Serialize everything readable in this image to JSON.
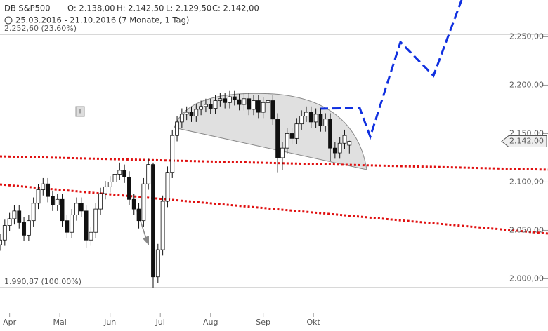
{
  "chart_data": {
    "type": "candlestick",
    "title": "DB S&P500",
    "ohlc_header": [
      "O: 2.138,00",
      "H: 2.142,50",
      "L: 2.129,50",
      "C: 2.142,00"
    ],
    "subtitle": "25.03.2016 - 21.10.2016 (7 Monate, 1 Tag)",
    "x": [
      0,
      2,
      4,
      6,
      8,
      10,
      12,
      14,
      16,
      18,
      20,
      22,
      24,
      26,
      28,
      30,
      32,
      34,
      36,
      38,
      40,
      42,
      44,
      46,
      48,
      50,
      52,
      54,
      56,
      58,
      60,
      62,
      64,
      66,
      68,
      70,
      72,
      74,
      76,
      78,
      80,
      82,
      84,
      86,
      88,
      90,
      92,
      94,
      96,
      98,
      100,
      102,
      104,
      106,
      108,
      110,
      112,
      114,
      116,
      118,
      120,
      122,
      124,
      126,
      128,
      130,
      132,
      134,
      136,
      138,
      140,
      142,
      144,
      146
    ],
    "open": [
      2035,
      2040,
      2055,
      2062,
      2070,
      2058,
      2045,
      2060,
      2078,
      2092,
      2098,
      2085,
      2076,
      2082,
      2060,
      2048,
      2066,
      2078,
      2070,
      2040,
      2048,
      2072,
      2088,
      2095,
      2100,
      2108,
      2112,
      2105,
      2082,
      2072,
      2060,
      2098,
      2118,
      2002,
      2030,
      2080,
      2110,
      2148,
      2162,
      2170,
      2172,
      2168,
      2175,
      2178,
      2180,
      2176,
      2184,
      2186,
      2182,
      2188,
      2185,
      2180,
      2186,
      2175,
      2184,
      2172,
      2182,
      2184,
      2165,
      2125,
      2135,
      2150,
      2145,
      2160,
      2168,
      2172,
      2162,
      2170,
      2158,
      2165,
      2135,
      2130,
      2140,
      2138
    ],
    "high": [
      2046,
      2061,
      2068,
      2076,
      2076,
      2064,
      2066,
      2084,
      2098,
      2104,
      2104,
      2091,
      2088,
      2088,
      2066,
      2072,
      2084,
      2084,
      2076,
      2054,
      2078,
      2094,
      2101,
      2106,
      2114,
      2120,
      2118,
      2111,
      2088,
      2078,
      2104,
      2124,
      2120,
      2036,
      2086,
      2116,
      2154,
      2168,
      2176,
      2178,
      2178,
      2181,
      2184,
      2186,
      2186,
      2190,
      2192,
      2192,
      2194,
      2194,
      2191,
      2192,
      2192,
      2190,
      2190,
      2188,
      2190,
      2190,
      2171,
      2141,
      2156,
      2156,
      2166,
      2174,
      2178,
      2178,
      2176,
      2176,
      2171,
      2171,
      2141,
      2146,
      2154,
      2142.5
    ],
    "low": [
      2029,
      2034,
      2049,
      2056,
      2052,
      2039,
      2039,
      2054,
      2072,
      2086,
      2079,
      2070,
      2070,
      2054,
      2042,
      2042,
      2060,
      2064,
      2032,
      2034,
      2042,
      2066,
      2082,
      2089,
      2094,
      2102,
      2099,
      2076,
      2066,
      2052,
      2054,
      2092,
      1991,
      1996,
      2024,
      2074,
      2104,
      2142,
      2156,
      2164,
      2162,
      2162,
      2169,
      2172,
      2170,
      2170,
      2178,
      2176,
      2176,
      2179,
      2174,
      2174,
      2169,
      2169,
      2166,
      2166,
      2176,
      2159,
      2110,
      2112,
      2129,
      2139,
      2139,
      2154,
      2162,
      2156,
      2156,
      2152,
      2152,
      2122,
      2124,
      2124,
      2134,
      2129.5
    ],
    "close": [
      2040,
      2055,
      2062,
      2070,
      2058,
      2045,
      2060,
      2078,
      2092,
      2098,
      2085,
      2076,
      2082,
      2060,
      2048,
      2066,
      2078,
      2070,
      2040,
      2048,
      2072,
      2088,
      2095,
      2100,
      2108,
      2112,
      2105,
      2082,
      2072,
      2060,
      2098,
      2118,
      2002,
      2030,
      2080,
      2110,
      2148,
      2162,
      2170,
      2172,
      2168,
      2175,
      2178,
      2180,
      2176,
      2184,
      2186,
      2182,
      2188,
      2185,
      2180,
      2186,
      2175,
      2184,
      2172,
      2182,
      2184,
      2165,
      2125,
      2135,
      2150,
      2145,
      2160,
      2168,
      2172,
      2162,
      2170,
      2158,
      2165,
      2135,
      2130,
      2140,
      2148,
      2142
    ],
    "last_label": "2.142,00",
    "xlim": [
      0,
      229
    ],
    "xticks": [
      {
        "value": 4,
        "label": "Apr"
      },
      {
        "value": 25,
        "label": "Mai"
      },
      {
        "value": 46,
        "label": "Jun"
      },
      {
        "value": 67,
        "label": "Jul"
      },
      {
        "value": 88,
        "label": "Aug"
      },
      {
        "value": 110,
        "label": "Sep"
      },
      {
        "value": 131,
        "label": "Okt"
      }
    ],
    "ylim": [
      1946,
      2288
    ],
    "yticks": [
      {
        "value": 2000,
        "label": "2.000,00"
      },
      {
        "value": 2050,
        "label": "2.050,00"
      },
      {
        "value": 2100,
        "label": "2.100,00"
      },
      {
        "value": 2150,
        "label": "2.150,00"
      },
      {
        "value": 2200,
        "label": "2.200,00"
      },
      {
        "value": 2250,
        "label": "2.250,00"
      }
    ],
    "levels": [
      {
        "value": 2252.6,
        "label": "2.252,60 (23.60%)"
      },
      {
        "value": 1990.87,
        "label": "1.990,87 (100.00%)"
      }
    ],
    "up_color": "#ffffff",
    "down_color": "#111111"
  }
}
